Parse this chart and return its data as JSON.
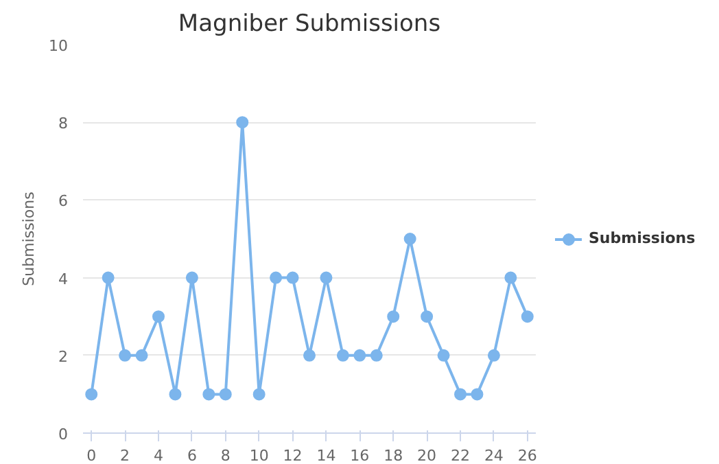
{
  "chart_data": {
    "type": "line",
    "title": "Magniber Submissions",
    "ylabel": "Submissions",
    "x": [
      0,
      1,
      2,
      3,
      4,
      5,
      6,
      7,
      8,
      9,
      10,
      11,
      12,
      13,
      14,
      15,
      16,
      17,
      18,
      19,
      20,
      21,
      22,
      23,
      24,
      25,
      26
    ],
    "series": [
      {
        "name": "Submissions",
        "color": "#7cb5ec",
        "values": [
          1,
          4,
          2,
          2,
          3,
          1,
          4,
          1,
          1,
          8,
          1,
          4,
          4,
          2,
          4,
          2,
          2,
          2,
          3,
          5,
          3,
          2,
          1,
          1,
          2,
          4,
          3
        ]
      }
    ],
    "xlim": [
      -0.5,
      26.5
    ],
    "xticks": [
      0,
      2,
      4,
      6,
      8,
      10,
      12,
      14,
      16,
      18,
      20,
      22,
      24,
      26
    ],
    "ylim": [
      0,
      10
    ],
    "yticks": [
      0,
      2,
      4,
      6,
      8,
      10
    ],
    "grid": "y",
    "legend": "right",
    "marker": "circle",
    "line_style": "solid"
  }
}
